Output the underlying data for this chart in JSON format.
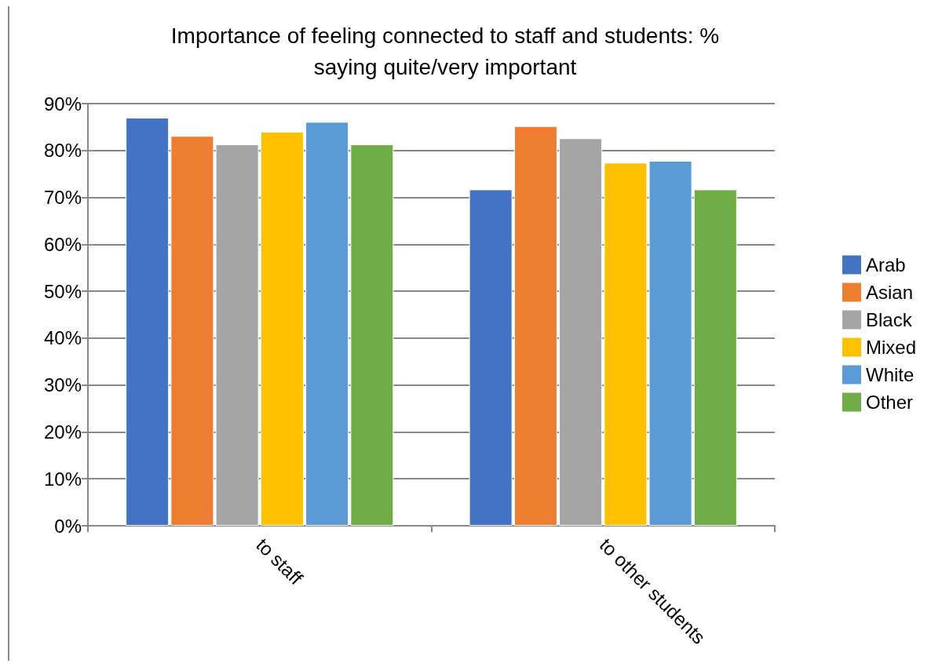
{
  "chart_data": {
    "type": "bar",
    "title": "Importance of feeling connected to staff and students: %\nsaying quite/very important",
    "categories": [
      "to staff",
      "to other students"
    ],
    "series": [
      {
        "name": "Arab",
        "color": "#4472c4",
        "values": [
          87.0,
          71.7
        ]
      },
      {
        "name": "Asian",
        "color": "#ed7d31",
        "values": [
          83.1,
          85.2
        ]
      },
      {
        "name": "Black",
        "color": "#a5a5a5",
        "values": [
          81.3,
          82.6
        ]
      },
      {
        "name": "Mixed",
        "color": "#ffc000",
        "values": [
          84.0,
          77.4
        ]
      },
      {
        "name": "White",
        "color": "#5b9bd5",
        "values": [
          86.1,
          77.8
        ]
      },
      {
        "name": "Other",
        "color": "#70ad47",
        "values": [
          81.3,
          71.7
        ]
      }
    ],
    "ylim": [
      0,
      90
    ],
    "yticks": [
      {
        "value": 0,
        "label": "0%"
      },
      {
        "value": 10,
        "label": "10%"
      },
      {
        "value": 20,
        "label": "20%"
      },
      {
        "value": 30,
        "label": "30%"
      },
      {
        "value": 40,
        "label": "40%"
      },
      {
        "value": 50,
        "label": "50%"
      },
      {
        "value": 60,
        "label": "60%"
      },
      {
        "value": 70,
        "label": "70%"
      },
      {
        "value": 80,
        "label": "80%"
      },
      {
        "value": 90,
        "label": "90%"
      }
    ],
    "grid": "y",
    "legend": "right"
  }
}
